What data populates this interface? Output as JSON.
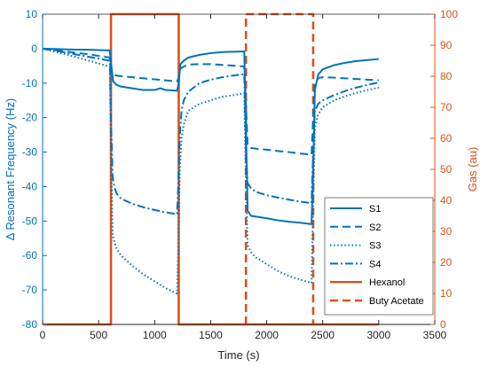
{
  "colors": {
    "left_axis": "#0072bd",
    "right_axis": "#d95319",
    "sensor": "#0072bd",
    "gas": "#d95319",
    "axis_x": "#262626"
  },
  "chart_data": {
    "type": "line",
    "xlabel": "Time (s)",
    "ylabel_left": "Δ Resonant Frequency (Hz)",
    "ylabel_right": "Gas (au)",
    "xlim": [
      0,
      3500
    ],
    "ylim_left": [
      -80,
      10
    ],
    "ylim_right": [
      0,
      100
    ],
    "xticks": [
      "0",
      "500",
      "1000",
      "1500",
      "2000",
      "2500",
      "3000",
      "3500"
    ],
    "yticks_left": [
      "10",
      "0",
      "-10",
      "-20",
      "-30",
      "-40",
      "-50",
      "-60",
      "-70",
      "-80"
    ],
    "yticks_right": [
      "100",
      "90",
      "80",
      "70",
      "60",
      "50",
      "40",
      "30",
      "20",
      "10",
      "0"
    ],
    "grid": false,
    "legend_position": "bottom-right",
    "series": [
      {
        "name": "S1",
        "axis": "left",
        "style": "solid",
        "x": [
          0,
          100,
          200,
          300,
          400,
          500,
          600,
          610,
          630,
          660,
          700,
          800,
          900,
          1000,
          1050,
          1100,
          1200,
          1215,
          1230,
          1260,
          1300,
          1400,
          1500,
          1600,
          1700,
          1800,
          1815,
          1830,
          1860,
          1900,
          2000,
          2100,
          2200,
          2300,
          2400,
          2415,
          2430,
          2460,
          2500,
          2600,
          2700,
          2800,
          2900,
          3000
        ],
        "y": [
          0,
          -0.1,
          -0.2,
          -0.3,
          -0.3,
          -0.4,
          -0.5,
          -4,
          -9.5,
          -10.5,
          -11,
          -11.5,
          -12,
          -12,
          -11.5,
          -12,
          -12.2,
          -10,
          -4.5,
          -3.5,
          -2.6,
          -1.8,
          -1.3,
          -1.0,
          -0.9,
          -0.8,
          -23,
          -47,
          -48.5,
          -48.7,
          -49.2,
          -49.8,
          -50.2,
          -50.5,
          -50.9,
          -35,
          -12,
          -7.5,
          -6.0,
          -4.8,
          -4.1,
          -3.6,
          -3.3,
          -3.0
        ]
      },
      {
        "name": "S2",
        "axis": "left",
        "style": "dashed",
        "x": [
          0,
          100,
          200,
          300,
          400,
          500,
          600,
          610,
          630,
          660,
          700,
          800,
          900,
          1000,
          1100,
          1200,
          1215,
          1230,
          1260,
          1300,
          1400,
          1500,
          1600,
          1700,
          1800,
          1815,
          1830,
          1860,
          1900,
          2000,
          2100,
          2200,
          2300,
          2400,
          2415,
          2430,
          2460,
          2500,
          2600,
          2700,
          2800,
          2900,
          3000
        ],
        "y": [
          0,
          -0.4,
          -0.8,
          -1.2,
          -1.6,
          -2.1,
          -2.6,
          -6,
          -7.5,
          -7.8,
          -8,
          -8.3,
          -8.6,
          -8.9,
          -9.2,
          -9.5,
          -8.5,
          -5.8,
          -5.2,
          -4.6,
          -4.5,
          -4.5,
          -4.7,
          -4.9,
          -5.2,
          -16,
          -28,
          -28.8,
          -29.0,
          -29.3,
          -29.7,
          -30.0,
          -30.4,
          -30.8,
          -20,
          -10,
          -8.5,
          -8.3,
          -8.4,
          -8.6,
          -8.8,
          -9.0,
          -9.2
        ]
      },
      {
        "name": "S3",
        "axis": "left",
        "style": "dotted",
        "x": [
          0,
          100,
          200,
          300,
          400,
          500,
          600,
          610,
          625,
          640,
          660,
          700,
          800,
          900,
          1000,
          1100,
          1150,
          1200,
          1210,
          1225,
          1240,
          1260,
          1300,
          1400,
          1500,
          1600,
          1700,
          1800,
          1815,
          1830,
          1860,
          1900,
          2000,
          2100,
          2200,
          2300,
          2400,
          2415,
          2430,
          2460,
          2500,
          2600,
          2700,
          2800,
          2900,
          3000
        ],
        "y": [
          0,
          -0.8,
          -1.6,
          -2.5,
          -3.4,
          -4.3,
          -5.2,
          -30,
          -54,
          -56,
          -58,
          -60,
          -63,
          -65.5,
          -67.5,
          -69.5,
          -70.3,
          -71.0,
          -60,
          -35,
          -26,
          -22,
          -18,
          -16,
          -15,
          -14,
          -13.5,
          -13,
          -40,
          -57,
          -59,
          -60.5,
          -62.5,
          -64.5,
          -66,
          -67,
          -68,
          -45,
          -23,
          -19,
          -17,
          -15,
          -13.8,
          -12.8,
          -12,
          -11.3
        ]
      },
      {
        "name": "S4",
        "axis": "left",
        "style": "dashdot",
        "x": [
          0,
          100,
          200,
          300,
          400,
          500,
          600,
          610,
          625,
          640,
          660,
          700,
          800,
          900,
          1000,
          1100,
          1200,
          1210,
          1225,
          1240,
          1260,
          1300,
          1400,
          1500,
          1600,
          1700,
          1800,
          1815,
          1830,
          1860,
          1900,
          2000,
          2100,
          2200,
          2300,
          2400,
          2415,
          2430,
          2460,
          2500,
          2600,
          2700,
          2800,
          2900,
          3000
        ],
        "y": [
          0,
          -0.5,
          -1.1,
          -1.7,
          -2.3,
          -2.9,
          -3.5,
          -20,
          -37,
          -40,
          -42,
          -43.5,
          -45,
          -46,
          -46.8,
          -47.5,
          -48,
          -40,
          -25,
          -18,
          -15,
          -12.5,
          -10,
          -9,
          -8.3,
          -7.8,
          -7.4,
          -30,
          -39,
          -40.5,
          -41.5,
          -42.5,
          -43.2,
          -43.8,
          -44.4,
          -44.8,
          -30,
          -18,
          -16,
          -15,
          -13.5,
          -12.3,
          -11.3,
          -10.5,
          -9.8
        ]
      },
      {
        "name": "Hexanol",
        "axis": "right",
        "style": "solid",
        "x": [
          0,
          610,
          610,
          1215,
          1215,
          3000
        ],
        "y": [
          0,
          0,
          100,
          100,
          0,
          0
        ]
      },
      {
        "name": "Buty Acetate",
        "axis": "right",
        "style": "dashed",
        "x": [
          1815,
          1815,
          2415,
          2415
        ],
        "y": [
          0,
          100,
          100,
          0
        ]
      }
    ]
  }
}
